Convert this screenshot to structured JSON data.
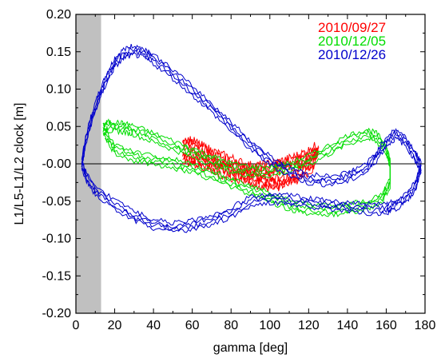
{
  "chart_data": {
    "type": "line",
    "title": "",
    "xlabel": "gamma [deg]",
    "ylabel": "L1/L5-L1/L2 clock [m]",
    "xlim": [
      0,
      180
    ],
    "ylim": [
      -0.2,
      0.2
    ],
    "x_ticks": [
      0,
      20,
      40,
      60,
      80,
      100,
      120,
      140,
      160,
      180
    ],
    "x_tick_labels": [
      "0",
      "20",
      "40",
      "60",
      "80",
      "100",
      "120",
      "140",
      "160",
      "180"
    ],
    "y_ticks": [
      0.2,
      0.15,
      0.1,
      0.05,
      0.0,
      -0.05,
      -0.1,
      -0.15,
      -0.2
    ],
    "y_tick_labels": [
      "0.20",
      "0.15",
      "0.10",
      "0.05",
      "-0.00",
      "-0.05",
      "-0.10",
      "-0.15",
      "-0.20"
    ],
    "shaded_region": {
      "x": [
        0,
        13
      ],
      "color": "#c0c0c0"
    },
    "zero_line": true,
    "grid": false,
    "legend_placement": "top-right",
    "series": [
      {
        "name": "2010/09/27",
        "color": "#ff0000",
        "x": [
          55,
          60,
          65,
          70,
          75,
          80,
          85,
          90,
          95,
          100,
          105,
          110,
          115,
          120,
          125,
          122,
          115,
          110,
          105,
          100,
          95,
          90,
          85,
          80,
          75,
          70,
          65,
          60,
          55
        ],
        "y": [
          0.03,
          0.025,
          0.018,
          0.012,
          0.006,
          0.002,
          -0.004,
          -0.008,
          -0.008,
          -0.006,
          -0.003,
          0.001,
          0.006,
          0.012,
          0.02,
          0.0,
          -0.015,
          -0.022,
          -0.025,
          -0.026,
          -0.024,
          -0.02,
          -0.016,
          -0.012,
          -0.008,
          -0.003,
          0.002,
          0.006,
          0.008
        ]
      },
      {
        "name": "2010/12/05",
        "color": "#00dd00",
        "x": [
          14,
          16,
          20,
          25,
          30,
          40,
          50,
          60,
          70,
          80,
          90,
          100,
          110,
          120,
          130,
          140,
          150,
          155,
          160,
          162,
          162,
          158,
          150,
          140,
          130,
          120,
          110,
          100,
          90,
          80,
          70,
          60,
          50,
          40,
          30,
          20,
          15
        ],
        "y": [
          0.045,
          0.05,
          0.05,
          0.048,
          0.045,
          0.035,
          0.025,
          0.015,
          0.005,
          -0.005,
          -0.01,
          -0.01,
          -0.005,
          0.005,
          0.018,
          0.032,
          0.04,
          0.035,
          0.02,
          0.0,
          -0.025,
          -0.045,
          -0.055,
          -0.06,
          -0.062,
          -0.06,
          -0.055,
          -0.045,
          -0.035,
          -0.025,
          -0.015,
          -0.005,
          0.0,
          0.005,
          0.01,
          0.02,
          0.04
        ]
      },
      {
        "name": "2010/12/26",
        "color": "#0000cc",
        "x": [
          3,
          5,
          8,
          12,
          16,
          20,
          25,
          30,
          35,
          40,
          50,
          60,
          70,
          80,
          90,
          100,
          110,
          120,
          130,
          140,
          150,
          155,
          160,
          165,
          170,
          175,
          178,
          175,
          170,
          165,
          160,
          150,
          140,
          130,
          120,
          110,
          100,
          90,
          80,
          70,
          60,
          50,
          40,
          30,
          20,
          10,
          5,
          3
        ],
        "y": [
          0.0,
          0.03,
          0.06,
          0.09,
          0.115,
          0.135,
          0.148,
          0.152,
          0.148,
          0.14,
          0.12,
          0.098,
          0.075,
          0.05,
          0.025,
          0.005,
          -0.01,
          -0.02,
          -0.022,
          -0.018,
          -0.005,
          0.01,
          0.03,
          0.04,
          0.03,
          0.01,
          -0.005,
          -0.03,
          -0.045,
          -0.055,
          -0.06,
          -0.06,
          -0.058,
          -0.055,
          -0.052,
          -0.048,
          -0.046,
          -0.05,
          -0.065,
          -0.075,
          -0.082,
          -0.085,
          -0.08,
          -0.07,
          -0.055,
          -0.035,
          -0.015,
          0.0
        ]
      }
    ]
  }
}
